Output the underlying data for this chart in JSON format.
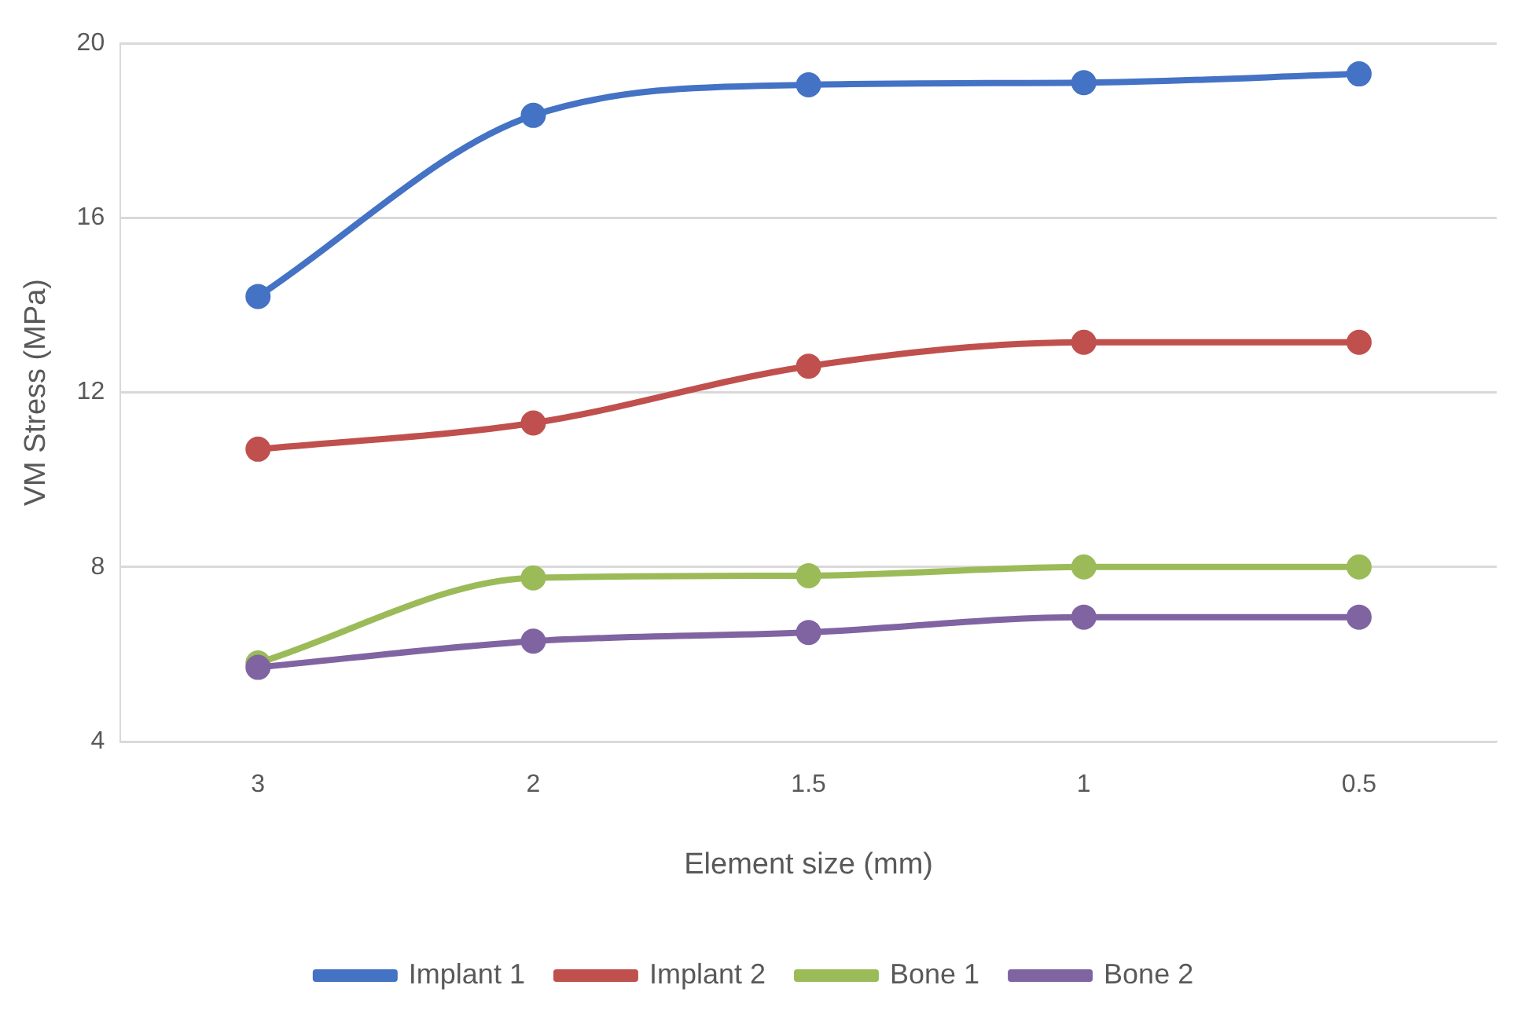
{
  "chart_data": {
    "type": "line",
    "xlabel": "Element size (mm)",
    "ylabel": "VM Stress (MPa)",
    "categories": [
      "3",
      "2",
      "1.5",
      "1",
      "0.5"
    ],
    "series": [
      {
        "name": "Implant 1",
        "color": "#4472c4",
        "values": [
          14.2,
          18.35,
          19.05,
          19.1,
          19.3
        ]
      },
      {
        "name": "Implant 2",
        "color": "#c0504d",
        "values": [
          10.7,
          11.3,
          12.6,
          13.15,
          13.15
        ]
      },
      {
        "name": "Bone 1",
        "color": "#9bbb59",
        "values": [
          5.8,
          7.75,
          7.8,
          8.0,
          8.0
        ]
      },
      {
        "name": "Bone 2",
        "color": "#8064a2",
        "values": [
          5.7,
          6.3,
          6.5,
          6.85,
          6.85
        ]
      }
    ],
    "ylim": [
      4,
      20
    ],
    "yticks": [
      4,
      8,
      12,
      16,
      20
    ],
    "grid": "y",
    "legend": "bottom",
    "marker": "circle",
    "line_style": "solid"
  }
}
